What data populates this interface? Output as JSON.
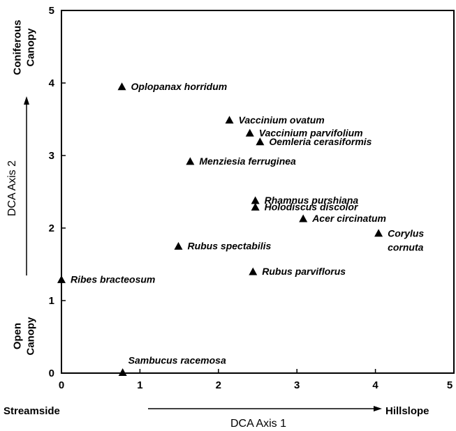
{
  "chart_data": {
    "type": "scatter",
    "x_label": "DCA Axis 1",
    "y_label": "DCA Axis 2",
    "x_low_label": "Streamside",
    "x_high_label": "Hillslope",
    "y_low_label": "Open Canopy",
    "y_high_label": "Coniferous Canopy",
    "xlim": [
      0,
      5
    ],
    "ylim": [
      0,
      5
    ],
    "xticks": [
      0,
      1,
      2,
      3,
      4,
      5
    ],
    "yticks": [
      0,
      1,
      2,
      3,
      4,
      5
    ],
    "color": "#000000",
    "labels": [
      "Oplopanax horridum",
      "Vaccinium ovatum",
      "Vaccinium parvifolium",
      "Oemleria cerasiformis",
      "Menziesia ferruginea",
      "Rhamnus purshiana",
      "Holodiscus discolor",
      "Acer circinatum",
      "Corylus cornuta",
      "Rubus spectabilis",
      "Rubus parviflorus",
      "Ribes bracteosum",
      "Sambucus racemosa"
    ],
    "x": [
      0.77,
      2.14,
      2.4,
      2.53,
      1.64,
      2.47,
      2.47,
      3.08,
      4.04,
      1.49,
      2.44,
      0,
      0.78
    ],
    "values": [
      3.94,
      3.48,
      3.3,
      3.18,
      2.91,
      2.37,
      2.28,
      2.12,
      1.92,
      1.74,
      1.39,
      1.28,
      0
    ]
  }
}
